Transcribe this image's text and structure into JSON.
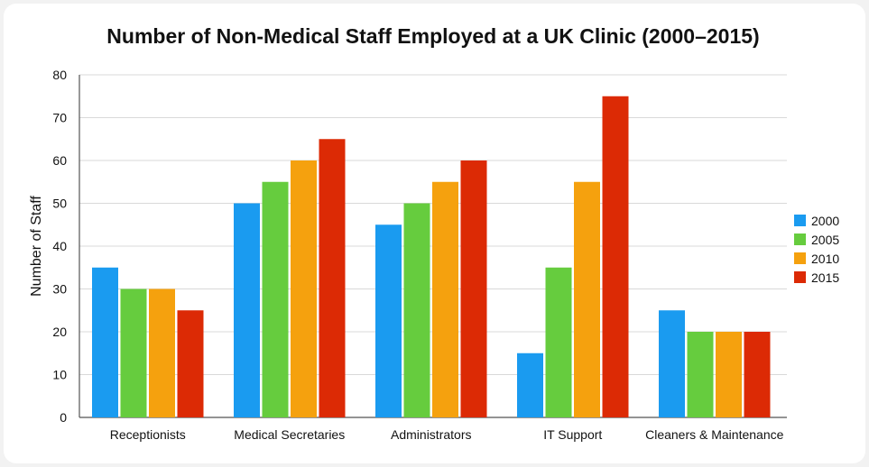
{
  "chart_data": {
    "type": "bar",
    "title": "Number of Non-Medical Staff Employed at a UK Clinic (2000–2015)",
    "ylabel": "Number of Staff",
    "xlabel": "",
    "ylim": [
      0,
      80
    ],
    "yticks": [
      0,
      10,
      20,
      30,
      40,
      50,
      60,
      70,
      80
    ],
    "grid": true,
    "legend_position": "right",
    "categories": [
      "Receptionists",
      "Medical Secretaries",
      "Administrators",
      "IT Support",
      "Cleaners & Maintenance"
    ],
    "series": [
      {
        "name": "2000",
        "color": "#1a9bf0",
        "values": [
          35,
          50,
          45,
          15,
          25
        ]
      },
      {
        "name": "2005",
        "color": "#66cc3e",
        "values": [
          30,
          55,
          50,
          35,
          20
        ]
      },
      {
        "name": "2010",
        "color": "#f5a10e",
        "values": [
          30,
          60,
          55,
          55,
          20
        ]
      },
      {
        "name": "2015",
        "color": "#dc2a05",
        "values": [
          25,
          65,
          60,
          75,
          20
        ]
      }
    ]
  }
}
